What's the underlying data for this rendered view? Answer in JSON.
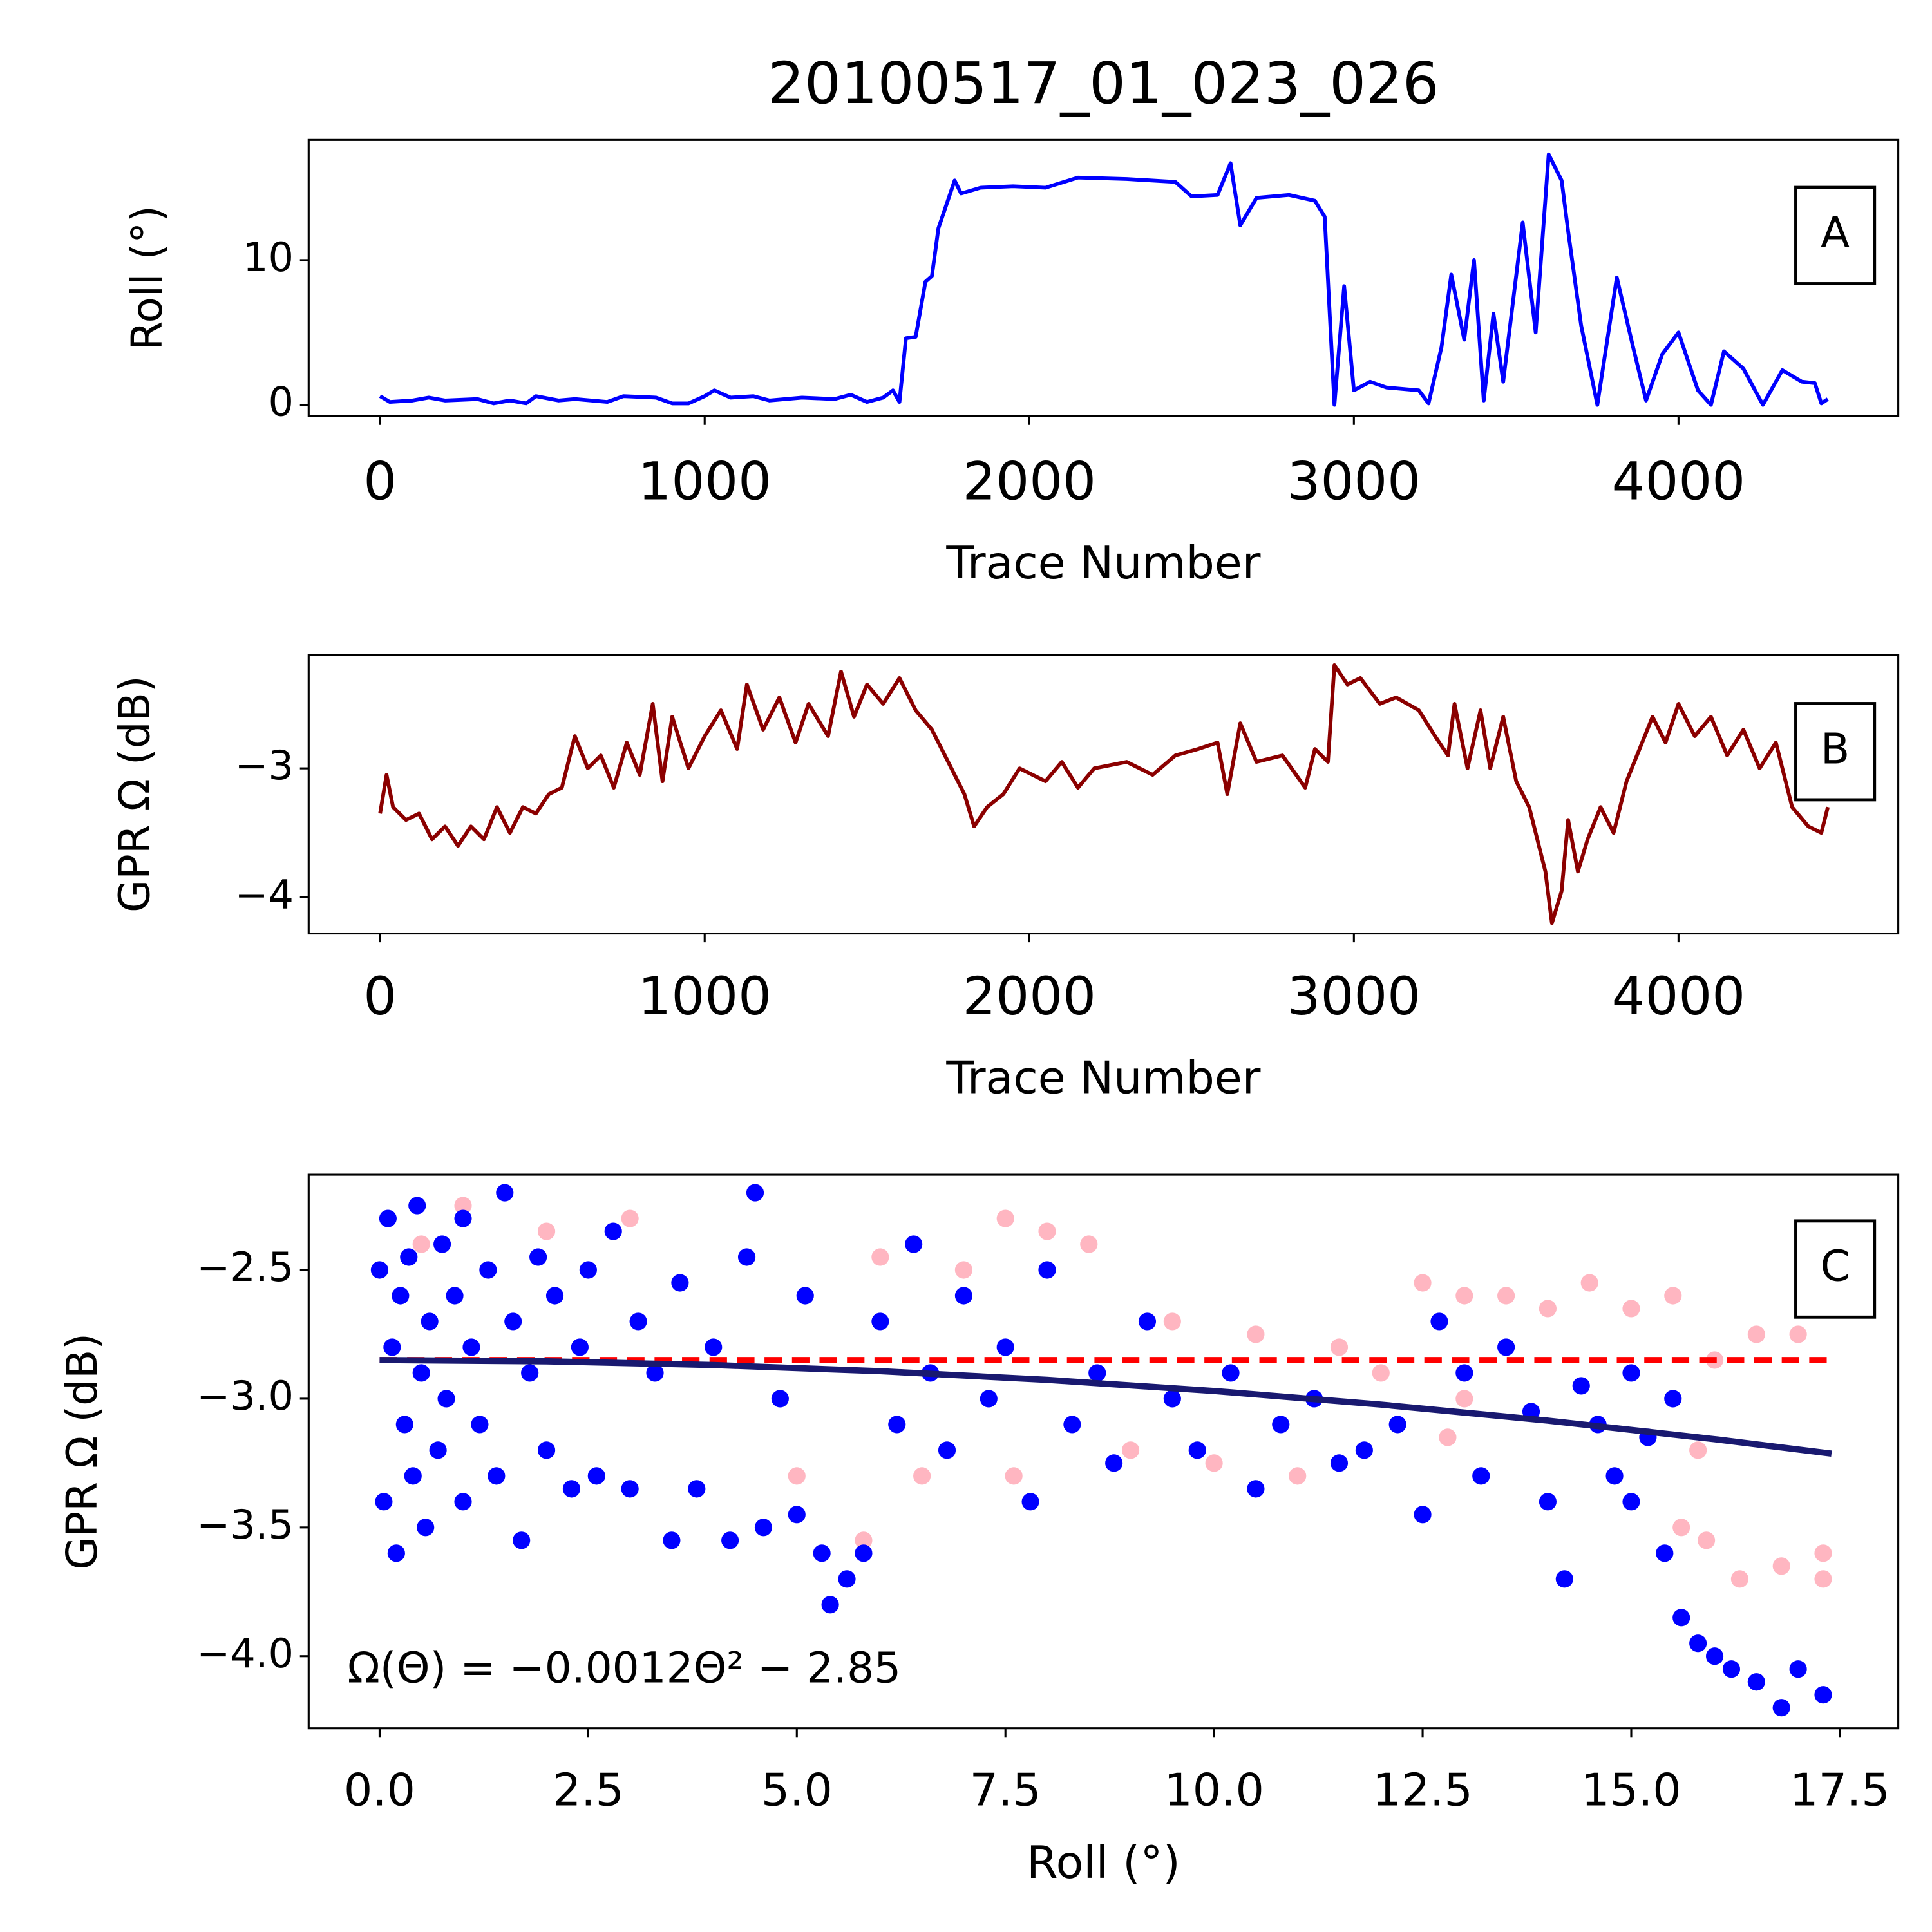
{
  "chart_data": [
    {
      "type": "line",
      "title": "20100517_01_023_026",
      "xlabel": "Trace Number",
      "ylabel": "Roll (°)",
      "panel_label": "A",
      "xlim": [
        -220,
        4677
      ],
      "ylim": [
        -0.78,
        18.3
      ],
      "xticks": [
        0,
        1000,
        2000,
        3000,
        4000
      ],
      "yticks": [
        0,
        10
      ],
      "series": [
        {
          "color": "#0000ff",
          "x": [
            0,
            30,
            100,
            150,
            200,
            300,
            350,
            400,
            450,
            480,
            550,
            600,
            700,
            750,
            850,
            900,
            950,
            1000,
            1030,
            1080,
            1150,
            1200,
            1300,
            1400,
            1450,
            1500,
            1550,
            1580,
            1600,
            1620,
            1650,
            1680,
            1700,
            1720,
            1770,
            1790,
            1850,
            1950,
            2050,
            2150,
            2300,
            2450,
            2500,
            2580,
            2620,
            2650,
            2700,
            2800,
            2880,
            2910,
            2940,
            2970,
            3000,
            3050,
            3100,
            3200,
            3230,
            3270,
            3300,
            3340,
            3370,
            3400,
            3430,
            3460,
            3520,
            3560,
            3600,
            3640,
            3660,
            3700,
            3750,
            3810,
            3860,
            3900,
            3950,
            4000,
            4060,
            4100,
            4140,
            4200,
            4260,
            4320,
            4380,
            4420,
            4440,
            4460
          ],
          "values": [
            0.6,
            0.2,
            0.3,
            0.5,
            0.3,
            0.4,
            0.1,
            0.3,
            0.1,
            0.6,
            0.3,
            0.4,
            0.2,
            0.6,
            0.5,
            0.1,
            0.1,
            0.6,
            1.0,
            0.5,
            0.6,
            0.3,
            0.5,
            0.4,
            0.7,
            0.2,
            0.5,
            1.0,
            0.2,
            4.6,
            4.7,
            8.5,
            8.9,
            12.2,
            15.5,
            14.6,
            15.0,
            15.1,
            15.0,
            15.7,
            15.6,
            15.4,
            14.4,
            14.5,
            16.7,
            12.4,
            14.3,
            14.5,
            14.1,
            13.0,
            0.0,
            8.2,
            1.0,
            1.6,
            1.2,
            1.0,
            0.1,
            4.0,
            9.0,
            4.5,
            10.0,
            0.3,
            6.3,
            1.6,
            12.6,
            5.0,
            17.3,
            15.5,
            12.0,
            5.5,
            0.0,
            8.8,
            4.0,
            0.3,
            3.5,
            5.0,
            1.0,
            0.0,
            3.7,
            2.5,
            0.0,
            2.4,
            1.6,
            1.5,
            0.1,
            0.4
          ]
        }
      ]
    },
    {
      "type": "line",
      "xlabel": "Trace Number",
      "ylabel": "GPR Ω (dB)",
      "panel_label": "B",
      "xlim": [
        -220,
        4677
      ],
      "ylim": [
        -4.28,
        -2.12
      ],
      "xticks": [
        0,
        1000,
        2000,
        3000,
        4000
      ],
      "yticks": [
        {
          "value": -3,
          "label": "−3"
        },
        {
          "value": -4,
          "label": "−4"
        }
      ],
      "series": [
        {
          "color": "#8b0000",
          "x": [
            0,
            20,
            40,
            80,
            120,
            160,
            200,
            240,
            280,
            320,
            360,
            400,
            440,
            480,
            520,
            560,
            600,
            640,
            680,
            720,
            760,
            800,
            840,
            870,
            900,
            950,
            1000,
            1050,
            1100,
            1130,
            1180,
            1230,
            1280,
            1320,
            1380,
            1420,
            1460,
            1500,
            1550,
            1600,
            1650,
            1700,
            1750,
            1800,
            1830,
            1870,
            1920,
            1970,
            2050,
            2100,
            2150,
            2200,
            2300,
            2380,
            2450,
            2520,
            2580,
            2610,
            2650,
            2700,
            2780,
            2850,
            2880,
            2920,
            2940,
            2980,
            3020,
            3080,
            3130,
            3200,
            3250,
            3290,
            3310,
            3350,
            3390,
            3420,
            3460,
            3500,
            3540,
            3560,
            3590,
            3610,
            3640,
            3660,
            3690,
            3720,
            3760,
            3800,
            3840,
            3880,
            3920,
            3960,
            4000,
            4050,
            4100,
            4150,
            4200,
            4250,
            4300,
            4350,
            4400,
            4440,
            4460
          ],
          "values": [
            -3.35,
            -3.05,
            -3.3,
            -3.4,
            -3.35,
            -3.55,
            -3.45,
            -3.6,
            -3.45,
            -3.55,
            -3.3,
            -3.5,
            -3.3,
            -3.35,
            -3.2,
            -3.15,
            -2.75,
            -3.0,
            -2.9,
            -3.15,
            -2.8,
            -3.05,
            -2.5,
            -3.1,
            -2.6,
            -3.0,
            -2.75,
            -2.55,
            -2.85,
            -2.35,
            -2.7,
            -2.45,
            -2.8,
            -2.5,
            -2.75,
            -2.25,
            -2.6,
            -2.35,
            -2.5,
            -2.3,
            -2.55,
            -2.7,
            -2.95,
            -3.2,
            -3.45,
            -3.3,
            -3.2,
            -3.0,
            -3.1,
            -2.95,
            -3.15,
            -3.0,
            -2.95,
            -3.05,
            -2.9,
            -2.85,
            -2.8,
            -3.2,
            -2.65,
            -2.95,
            -2.9,
            -3.15,
            -2.85,
            -2.95,
            -2.2,
            -2.35,
            -2.3,
            -2.5,
            -2.45,
            -2.55,
            -2.75,
            -2.9,
            -2.5,
            -3.0,
            -2.55,
            -3.0,
            -2.6,
            -3.1,
            -3.3,
            -3.5,
            -3.8,
            -4.2,
            -3.95,
            -3.4,
            -3.8,
            -3.55,
            -3.3,
            -3.5,
            -3.1,
            -2.85,
            -2.6,
            -2.8,
            -2.5,
            -2.75,
            -2.6,
            -2.9,
            -2.7,
            -3.0,
            -2.8,
            -3.3,
            -3.45,
            -3.5,
            -3.3
          ]
        }
      ]
    },
    {
      "type": "scatter",
      "xlabel": "Roll (°)",
      "ylabel": "GPR Ω (dB)",
      "panel_label": "C",
      "equation": "Ω(Θ) = −0.0012Θ² − 2.85",
      "xlim": [
        -0.85,
        18.2
      ],
      "ylim": [
        -4.28,
        -2.13
      ],
      "xticks": [
        {
          "value": 0,
          "label": "0.0"
        },
        2.5,
        {
          "value": 5,
          "label": "5.0"
        },
        7.5,
        {
          "value": 10,
          "label": "10.0"
        },
        12.5,
        {
          "value": 15,
          "label": "15.0"
        },
        17.5
      ],
      "yticks": [
        {
          "value": -2.5,
          "label": "−2.5"
        },
        {
          "value": -3,
          "label": "−3.0"
        },
        {
          "value": -3.5,
          "label": "−3.5"
        },
        {
          "value": -4,
          "label": "−4.0"
        }
      ],
      "series": [
        {
          "color": "#ffb6c1",
          "mode": "markers",
          "x": [
            12.5,
            13.0,
            13.5,
            14.0,
            14.5,
            15.0,
            15.5,
            16.0,
            16.5,
            17.0,
            15.6,
            15.9,
            16.3,
            16.8,
            17.3,
            17.3,
            15.8,
            13.0,
            12.0,
            11.5,
            10.5,
            9.5,
            8.5,
            8.0,
            7.5,
            7.0,
            6.5,
            5.8,
            5.0,
            4.5,
            3.0,
            2.0,
            1.0,
            0.5,
            7.6,
            9.0,
            10.0,
            11.0,
            6.0,
            12.8
          ],
          "values": [
            -2.55,
            -2.6,
            -2.6,
            -2.65,
            -2.55,
            -2.65,
            -2.6,
            -2.85,
            -2.75,
            -2.75,
            -3.5,
            -3.55,
            -3.7,
            -3.65,
            -3.7,
            -3.6,
            -3.2,
            -3.0,
            -2.9,
            -2.8,
            -2.75,
            -2.7,
            -2.4,
            -2.35,
            -2.3,
            -2.5,
            -3.3,
            -3.55,
            -3.3,
            -2.2,
            -2.3,
            -2.35,
            -2.25,
            -2.4,
            -3.3,
            -3.2,
            -3.25,
            -3.3,
            -2.45,
            -3.15
          ]
        },
        {
          "color": "#0000ff",
          "mode": "markers",
          "x": [
            0.0,
            0.05,
            0.1,
            0.15,
            0.2,
            0.25,
            0.3,
            0.35,
            0.4,
            0.45,
            0.5,
            0.55,
            0.6,
            0.7,
            0.75,
            0.8,
            0.9,
            1.0,
            1.0,
            1.1,
            1.2,
            1.3,
            1.4,
            1.5,
            1.6,
            1.7,
            1.8,
            1.9,
            2.0,
            2.1,
            2.3,
            2.4,
            2.5,
            2.6,
            2.8,
            3.0,
            3.1,
            3.3,
            3.5,
            3.6,
            3.8,
            4.0,
            4.2,
            4.4,
            4.5,
            4.6,
            4.8,
            5.0,
            5.1,
            5.3,
            5.4,
            5.6,
            5.8,
            6.0,
            6.2,
            6.4,
            6.6,
            6.8,
            7.0,
            7.3,
            7.5,
            7.8,
            8.0,
            8.3,
            8.6,
            8.8,
            9.2,
            9.5,
            9.8,
            10.2,
            10.5,
            10.8,
            11.2,
            11.5,
            11.8,
            12.2,
            12.5,
            12.7,
            13.0,
            13.2,
            13.5,
            13.8,
            14.0,
            14.2,
            14.4,
            14.6,
            14.8,
            15.0,
            15.0,
            15.2,
            15.4,
            15.5,
            15.6,
            15.8,
            16.0,
            16.2,
            16.5,
            16.8,
            17.0,
            17.3
          ],
          "values": [
            -2.5,
            -3.4,
            -2.3,
            -2.8,
            -3.6,
            -2.6,
            -3.1,
            -2.45,
            -3.3,
            -2.25,
            -2.9,
            -3.5,
            -2.7,
            -3.2,
            -2.4,
            -3.0,
            -2.6,
            -3.4,
            -2.3,
            -2.8,
            -3.1,
            -2.5,
            -3.3,
            -2.2,
            -2.7,
            -3.55,
            -2.9,
            -2.45,
            -3.2,
            -2.6,
            -3.35,
            -2.8,
            -2.5,
            -3.3,
            -2.35,
            -3.35,
            -2.7,
            -2.9,
            -3.55,
            -2.55,
            -3.35,
            -2.8,
            -3.55,
            -2.45,
            -2.2,
            -3.5,
            -3.0,
            -3.45,
            -2.6,
            -3.6,
            -3.8,
            -3.7,
            -3.6,
            -2.7,
            -3.1,
            -2.4,
            -2.9,
            -3.2,
            -2.6,
            -3.0,
            -2.8,
            -3.4,
            -2.5,
            -3.1,
            -2.9,
            -3.25,
            -2.7,
            -3.0,
            -3.2,
            -2.9,
            -3.35,
            -3.1,
            -3.0,
            -3.25,
            -3.2,
            -3.1,
            -3.45,
            -2.7,
            -2.9,
            -3.3,
            -2.8,
            -3.05,
            -3.4,
            -3.7,
            -2.95,
            -3.1,
            -3.3,
            -2.9,
            -3.4,
            -3.15,
            -3.6,
            -3.0,
            -3.85,
            -3.95,
            -4.0,
            -4.05,
            -4.1,
            -4.2,
            -4.05,
            -4.15
          ]
        },
        {
          "color": "#ff0000",
          "mode": "lines",
          "linestyle": "dashed",
          "x": [
            0,
            17.4
          ],
          "values": [
            -2.85,
            -2.85
          ]
        },
        {
          "color": "#191970",
          "mode": "lines",
          "linestyle": "solid",
          "x": [
            0,
            2,
            4,
            6,
            8,
            10,
            12,
            14,
            16,
            17.4
          ],
          "values": [
            -2.85,
            -2.8548,
            -2.8692,
            -2.8932,
            -2.9268,
            -2.97,
            -3.0228,
            -3.0852,
            -3.1572,
            -3.2133
          ]
        }
      ]
    }
  ]
}
